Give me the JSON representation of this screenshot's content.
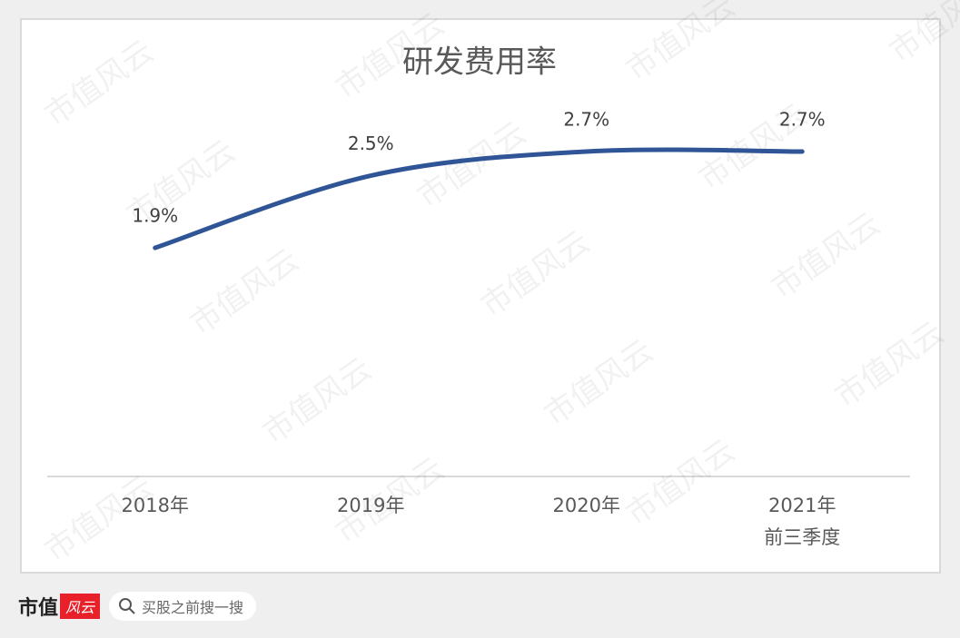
{
  "chart_data": {
    "type": "line",
    "title": "研发费用率",
    "categories": [
      "2018年",
      "2019年",
      "2020年",
      "2021年\n前三季度"
    ],
    "values": [
      1.9,
      2.5,
      2.7,
      2.7
    ],
    "value_labels": [
      "1.9%",
      "2.5%",
      "2.7%",
      "2.7%"
    ],
    "color": "#2f5597"
  },
  "watermark": "市值风云",
  "footer": {
    "brand": "市值",
    "brand_badge": "风云",
    "search_placeholder": "买股之前搜一搜"
  }
}
